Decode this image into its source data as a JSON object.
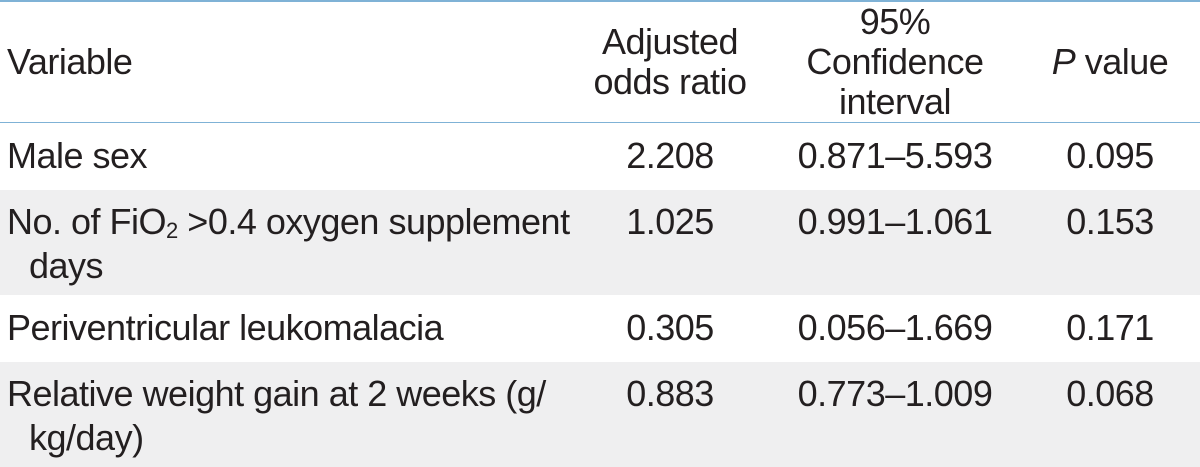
{
  "headers": {
    "variable": "Variable",
    "odds_ratio_line1": "Adjusted",
    "odds_ratio_line2": "odds ratio",
    "ci_line1": "95% Confidence",
    "ci_line2": "interval",
    "p_italic": "P",
    "p_rest": " value"
  },
  "rows": [
    {
      "variable": "Male sex",
      "odds_ratio": "2.208",
      "ci": "0.871–5.593",
      "p": "0.095"
    },
    {
      "variable_part1": "No. of FiO",
      "variable_sub": "2",
      "variable_part2": " >0.4 oxygen supplement",
      "variable_wrap": "days",
      "odds_ratio": "1.025",
      "ci": "0.991–1.061",
      "p": "0.153"
    },
    {
      "variable": "Periventricular leukomalacia",
      "odds_ratio": "0.305",
      "ci": "0.056–1.669",
      "p": "0.171"
    },
    {
      "variable_line1": "Relative weight gain at 2 weeks (g/",
      "variable_wrap": "kg/day)",
      "odds_ratio": "0.883",
      "ci": "0.773–1.009",
      "p": "0.068"
    }
  ],
  "colors": {
    "rule": "#7fb2d6",
    "shade": "#efeff0",
    "text": "#231f20"
  }
}
